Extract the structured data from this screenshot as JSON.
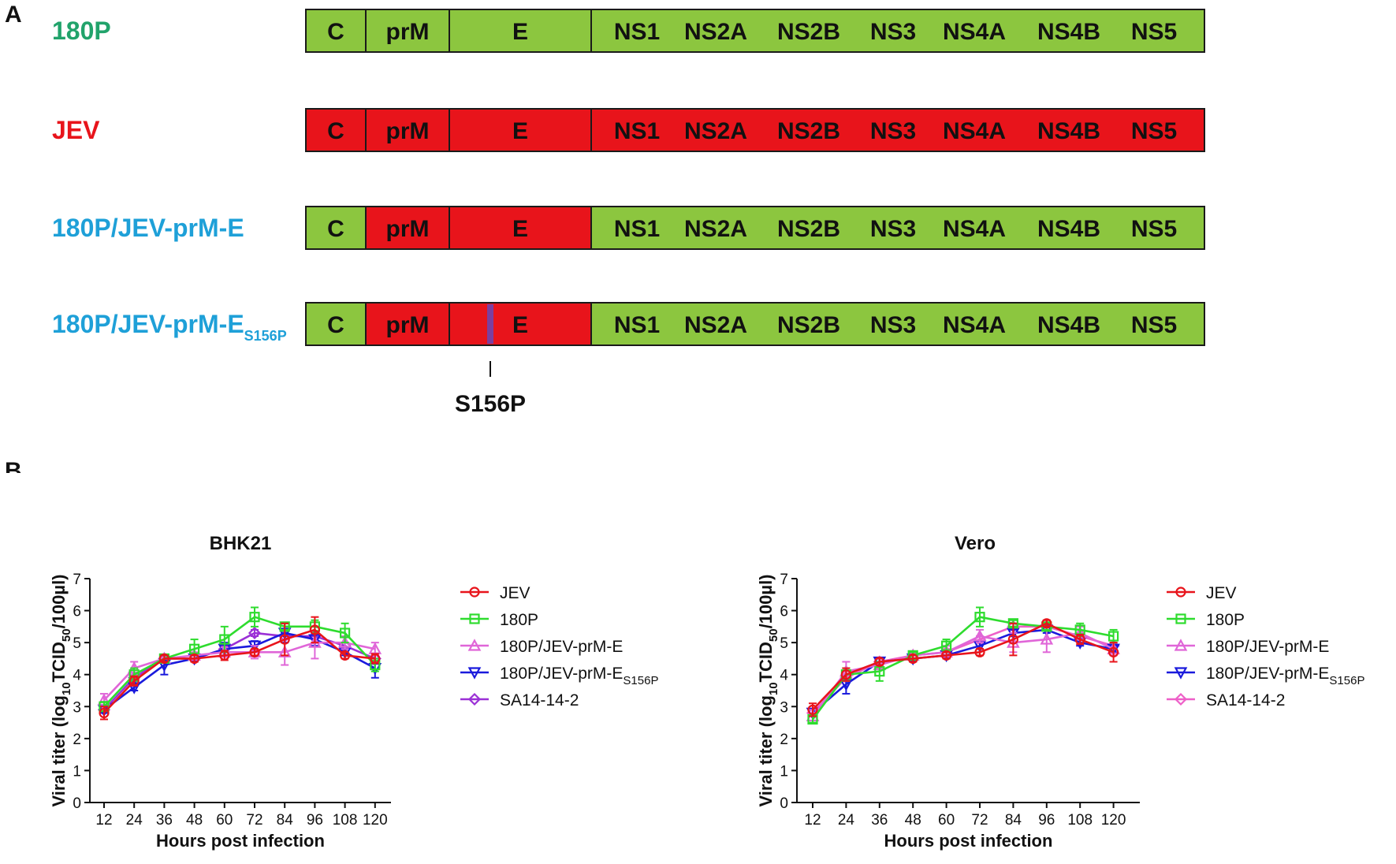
{
  "panel_labels": {
    "a": "A",
    "b": "B"
  },
  "genome_panel": {
    "colors": {
      "green": "#8cc63f",
      "red": "#e8141b",
      "purple": "#7b3fa0"
    },
    "rows": [
      {
        "label": "180P",
        "sub": "",
        "label_color": "#21a36b",
        "segments": [
          "C",
          "prM",
          "E",
          "NS1",
          "NS2A",
          "NS2B",
          "NS3",
          "NS4A",
          "NS4B",
          "NS5"
        ],
        "segment_colors": [
          "green",
          "green",
          "green",
          "green"
        ]
      },
      {
        "label": "JEV",
        "sub": "",
        "label_color": "#e8141b",
        "segments": [
          "C",
          "prM",
          "E",
          "NS1",
          "NS2A",
          "NS2B",
          "NS3",
          "NS4A",
          "NS4B",
          "NS5"
        ],
        "segment_colors": [
          "red",
          "red",
          "red",
          "red"
        ]
      },
      {
        "label": "180P/JEV-prM-E",
        "sub": "",
        "label_color": "#1ea0d8",
        "segments": [
          "C",
          "prM",
          "E",
          "NS1",
          "NS2A",
          "NS2B",
          "NS3",
          "NS4A",
          "NS4B",
          "NS5"
        ],
        "segment_colors": [
          "green",
          "red",
          "red",
          "green"
        ]
      },
      {
        "label": "180P/JEV-prM-E",
        "sub": "S156P",
        "label_color": "#1ea0d8",
        "segments": [
          "C",
          "prM",
          "E",
          "NS1",
          "NS2A",
          "NS2B",
          "NS3",
          "NS4A",
          "NS4B",
          "NS5"
        ],
        "segment_colors": [
          "green",
          "red",
          "red",
          "green"
        ]
      }
    ],
    "mutation_label": "S156P"
  },
  "chart_data": [
    {
      "type": "line",
      "title": "BHK21",
      "xlabel": "Hours post infection",
      "ylabel_main": "Viral titer (log",
      "ylabel_sub1": "10",
      "ylabel_mid": "TCID",
      "ylabel_sub2": "50",
      "ylabel_end": "/100µl)",
      "x": [
        12,
        24,
        36,
        48,
        60,
        72,
        84,
        96,
        108,
        120
      ],
      "ylim": [
        0,
        7
      ],
      "yticks": [
        0,
        1,
        2,
        3,
        4,
        5,
        6,
        7
      ],
      "series": [
        {
          "name": "JEV",
          "sub": "",
          "color": "#e8141b",
          "marker": "circle",
          "values": [
            2.8,
            3.8,
            4.5,
            4.5,
            4.6,
            4.7,
            5.1,
            5.4,
            4.6,
            4.5
          ],
          "errors": [
            0.2,
            0.15,
            0.1,
            0.1,
            0.15,
            0.1,
            0.5,
            0.4,
            0.1,
            0.15
          ]
        },
        {
          "name": "180P",
          "sub": "",
          "color": "#2edc2e",
          "marker": "square",
          "values": [
            3.0,
            4.0,
            4.5,
            4.8,
            5.1,
            5.8,
            5.5,
            5.5,
            5.3,
            4.3
          ],
          "errors": [
            0.15,
            0.2,
            0.1,
            0.3,
            0.4,
            0.3,
            0.1,
            0.2,
            0.3,
            0.2
          ]
        },
        {
          "name": "180P/JEV-prM-E",
          "sub": "",
          "color": "#e066d8",
          "marker": "triangle",
          "values": [
            3.2,
            4.2,
            4.5,
            4.6,
            4.7,
            4.7,
            4.7,
            5.0,
            5.0,
            4.8
          ],
          "errors": [
            0.2,
            0.2,
            0.1,
            0.1,
            0.15,
            0.2,
            0.4,
            0.5,
            0.2,
            0.2
          ]
        },
        {
          "name": "180P/JEV-prM-E",
          "sub": "S156P",
          "color": "#1a1adc",
          "marker": "triangle-down",
          "values": [
            2.9,
            3.6,
            4.3,
            4.5,
            4.8,
            4.9,
            5.3,
            5.1,
            4.7,
            4.2
          ],
          "errors": [
            0.1,
            0.1,
            0.3,
            0.1,
            0.2,
            0.15,
            0.3,
            0.2,
            0.1,
            0.3
          ]
        },
        {
          "name": "SA14-14-2",
          "sub": "",
          "color": "#9b30d6",
          "marker": "diamond",
          "values": [
            2.9,
            3.9,
            4.5,
            4.5,
            4.8,
            5.3,
            5.2,
            5.2,
            4.9,
            4.5
          ],
          "errors": [
            0.1,
            0.1,
            0.1,
            0.1,
            0.1,
            0.1,
            0.1,
            0.1,
            0.1,
            0.1
          ]
        }
      ]
    },
    {
      "type": "line",
      "title": "Vero",
      "xlabel": "Hours post infection",
      "ylabel_main": "Viral titer (log",
      "ylabel_sub1": "10",
      "ylabel_mid": "TCID",
      "ylabel_sub2": "50",
      "ylabel_end": "/100µl)",
      "x": [
        12,
        24,
        36,
        48,
        60,
        72,
        84,
        96,
        108,
        120
      ],
      "ylim": [
        0,
        7
      ],
      "yticks": [
        0,
        1,
        2,
        3,
        4,
        5,
        6,
        7
      ],
      "series": [
        {
          "name": "JEV",
          "sub": "",
          "color": "#e8141b",
          "marker": "circle",
          "values": [
            2.9,
            4.0,
            4.4,
            4.5,
            4.6,
            4.7,
            5.1,
            5.6,
            5.1,
            4.7
          ],
          "errors": [
            0.2,
            0.2,
            0.1,
            0.1,
            0.1,
            0.1,
            0.5,
            0.1,
            0.15,
            0.3
          ]
        },
        {
          "name": "180P",
          "sub": "",
          "color": "#2edc2e",
          "marker": "square",
          "values": [
            2.6,
            4.0,
            4.1,
            4.6,
            4.9,
            5.8,
            5.6,
            5.5,
            5.4,
            5.2
          ],
          "errors": [
            0.1,
            0.2,
            0.3,
            0.1,
            0.2,
            0.3,
            0.1,
            0.1,
            0.2,
            0.2
          ]
        },
        {
          "name": "180P/JEV-prM-E",
          "sub": "",
          "color": "#e066d8",
          "marker": "triangle",
          "values": [
            2.7,
            4.1,
            4.3,
            4.6,
            4.7,
            5.2,
            5.0,
            5.1,
            5.3,
            4.8
          ],
          "errors": [
            0.2,
            0.3,
            0.1,
            0.1,
            0.2,
            0.2,
            0.3,
            0.4,
            0.2,
            0.2
          ]
        },
        {
          "name": "180P/JEV-prM-E",
          "sub": "S156P",
          "color": "#1a1adc",
          "marker": "triangle-down",
          "values": [
            2.8,
            3.7,
            4.4,
            4.5,
            4.6,
            4.9,
            5.3,
            5.4,
            5.0,
            4.8
          ],
          "errors": [
            0.1,
            0.3,
            0.1,
            0.1,
            0.1,
            0.1,
            0.1,
            0.1,
            0.1,
            0.1
          ]
        },
        {
          "name": "SA14-14-2",
          "sub": "",
          "color": "#ee5fc8",
          "marker": "diamond",
          "values": [
            2.8,
            3.9,
            4.4,
            4.6,
            4.7,
            5.1,
            5.5,
            5.5,
            5.2,
            4.9
          ],
          "errors": [
            0.1,
            0.1,
            0.1,
            0.1,
            0.1,
            0.1,
            0.1,
            0.1,
            0.1,
            0.1
          ]
        }
      ]
    }
  ]
}
